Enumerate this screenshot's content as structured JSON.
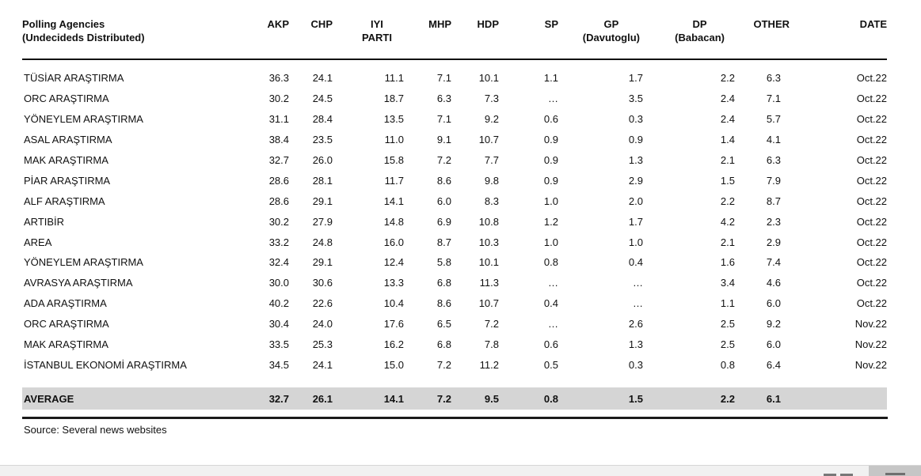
{
  "colors": {
    "average_row_bg": "#d5d5d5",
    "taskbar_strip": "#f1f1f1",
    "taskbar_right_block": "#c6c6c6",
    "taskbar_dash": "#787878",
    "rule": "#1a1a1a"
  },
  "chart_data": {
    "type": "table",
    "title": "Polling Agencies (Undecideds Distributed)",
    "source": "Source: Several news websites",
    "header": {
      "agency_line1": "Polling Agencies",
      "agency_line2": "(Undecideds Distributed)",
      "columns": [
        {
          "lines": [
            "AKP"
          ]
        },
        {
          "lines": [
            "CHP"
          ]
        },
        {
          "lines": [
            "IYI",
            "PARTI"
          ]
        },
        {
          "lines": [
            "MHP"
          ]
        },
        {
          "lines": [
            "HDP"
          ]
        },
        {
          "lines": [
            "SP"
          ]
        },
        {
          "lines": [
            "GP",
            "(Davutoglu)"
          ]
        },
        {
          "lines": [
            "DP",
            "(Babacan)"
          ]
        },
        {
          "lines": [
            "OTHER"
          ]
        },
        {
          "lines": [
            "DATE"
          ]
        }
      ]
    },
    "rows": [
      {
        "agency": "TÜSİAR ARAŞTIRMA",
        "values": [
          "36.3",
          "24.1",
          "11.1",
          "7.1",
          "10.1",
          "1.1",
          "1.7",
          "2.2",
          "6.3"
        ],
        "date": "Oct.22"
      },
      {
        "agency": "ORC ARAŞTIRMA",
        "values": [
          "30.2",
          "24.5",
          "18.7",
          "6.3",
          "7.3",
          "…",
          "3.5",
          "2.4",
          "7.1"
        ],
        "date": "Oct.22"
      },
      {
        "agency": "YÖNEYLEM ARAŞTIRMA",
        "values": [
          "31.1",
          "28.4",
          "13.5",
          "7.1",
          "9.2",
          "0.6",
          "0.3",
          "2.4",
          "5.7"
        ],
        "date": "Oct.22"
      },
      {
        "agency": "ASAL ARAŞTIRMA",
        "values": [
          "38.4",
          "23.5",
          "11.0",
          "9.1",
          "10.7",
          "0.9",
          "0.9",
          "1.4",
          "4.1"
        ],
        "date": "Oct.22"
      },
      {
        "agency": "MAK ARAŞTIRMA",
        "values": [
          "32.7",
          "26.0",
          "15.8",
          "7.2",
          "7.7",
          "0.9",
          "1.3",
          "2.1",
          "6.3"
        ],
        "date": "Oct.22"
      },
      {
        "agency": "PİAR ARAŞTIRMA",
        "values": [
          "28.6",
          "28.1",
          "11.7",
          "8.6",
          "9.8",
          "0.9",
          "2.9",
          "1.5",
          "7.9"
        ],
        "date": "Oct.22"
      },
      {
        "agency": "ALF ARAŞTIRMA",
        "values": [
          "28.6",
          "29.1",
          "14.1",
          "6.0",
          "8.3",
          "1.0",
          "2.0",
          "2.2",
          "8.7"
        ],
        "date": "Oct.22"
      },
      {
        "agency": "ARTIBİR",
        "values": [
          "30.2",
          "27.9",
          "14.8",
          "6.9",
          "10.8",
          "1.2",
          "1.7",
          "4.2",
          "2.3"
        ],
        "date": "Oct.22"
      },
      {
        "agency": "AREA",
        "values": [
          "33.2",
          "24.8",
          "16.0",
          "8.7",
          "10.3",
          "1.0",
          "1.0",
          "2.1",
          "2.9"
        ],
        "date": "Oct.22"
      },
      {
        "agency": "YÖNEYLEM ARAŞTIRMA",
        "values": [
          "32.4",
          "29.1",
          "12.4",
          "5.8",
          "10.1",
          "0.8",
          "0.4",
          "1.6",
          "7.4"
        ],
        "date": "Oct.22"
      },
      {
        "agency": "AVRASYA ARAŞTIRMA",
        "values": [
          "30.0",
          "30.6",
          "13.3",
          "6.8",
          "11.3",
          "…",
          "…",
          "3.4",
          "4.6"
        ],
        "date": "Oct.22"
      },
      {
        "agency": "ADA ARAŞTIRMA",
        "values": [
          "40.2",
          "22.6",
          "10.4",
          "8.6",
          "10.7",
          "0.4",
          "…",
          "1.1",
          "6.0"
        ],
        "date": "Oct.22"
      },
      {
        "agency": "ORC ARAŞTIRMA",
        "values": [
          "30.4",
          "24.0",
          "17.6",
          "6.5",
          "7.2",
          "…",
          "2.6",
          "2.5",
          "9.2"
        ],
        "date": "Nov.22"
      },
      {
        "agency": "MAK ARAŞTIRMA",
        "values": [
          "33.5",
          "25.3",
          "16.2",
          "6.8",
          "7.8",
          "0.6",
          "1.3",
          "2.5",
          "6.0"
        ],
        "date": "Nov.22"
      },
      {
        "agency": "İSTANBUL EKONOMİ ARAŞTIRMA",
        "values": [
          "34.5",
          "24.1",
          "15.0",
          "7.2",
          "11.2",
          "0.5",
          "0.3",
          "0.8",
          "6.4"
        ],
        "date": "Nov.22"
      }
    ],
    "average": {
      "label": "AVERAGE",
      "values": [
        "32.7",
        "26.1",
        "14.1",
        "7.2",
        "9.5",
        "0.8",
        "1.5",
        "2.2",
        "6.1"
      ],
      "date": ""
    }
  }
}
